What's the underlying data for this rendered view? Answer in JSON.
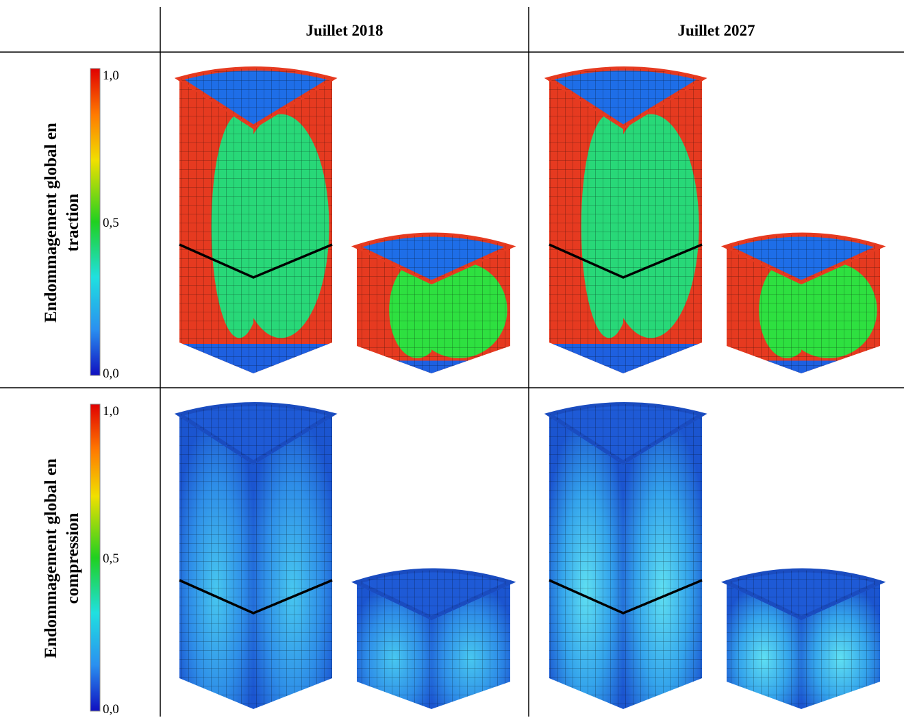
{
  "table": {
    "columns": [
      "Juillet 2018",
      "Juillet 2027"
    ],
    "rows": [
      {
        "label": [
          "Endommagement global en",
          "traction"
        ],
        "scale": [
          "1,0",
          "0,5",
          "0,0"
        ]
      },
      {
        "label": [
          "Endommagement global en",
          "compression"
        ],
        "scale": [
          "1,0",
          "0,5",
          "0,0"
        ]
      }
    ]
  }
}
